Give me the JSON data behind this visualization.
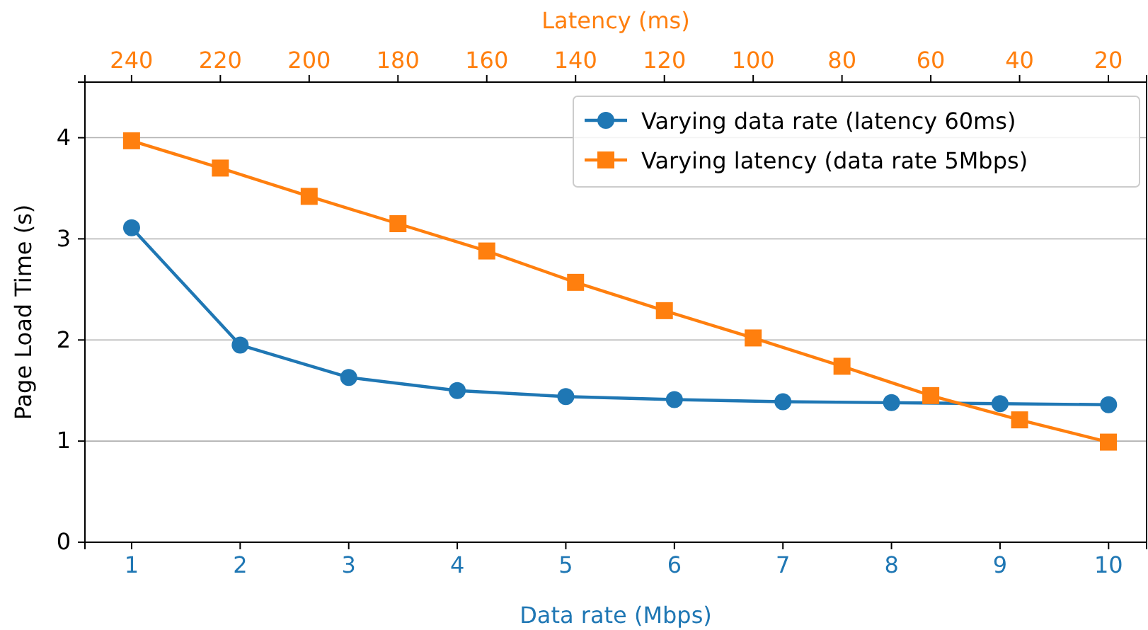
{
  "chart_data": {
    "type": "line",
    "xlabel": "Data rate (Mbps)",
    "x2label": "Latency (ms)",
    "ylabel": "Page Load Time (s)",
    "xlim": [
      0.57,
      10.35
    ],
    "xticks": [
      1,
      2,
      3,
      4,
      5,
      6,
      7,
      8,
      9,
      10
    ],
    "x2lim": [
      250.5,
      11.4
    ],
    "x2ticks": [
      240,
      220,
      200,
      180,
      160,
      140,
      120,
      100,
      80,
      60,
      40,
      20
    ],
    "ylim": [
      0,
      4.55
    ],
    "yticks": [
      0,
      1,
      2,
      3,
      4
    ],
    "grid": "y",
    "legend": "top right",
    "line_style": "solid",
    "series": [
      {
        "name": "Varying data rate (latency 60ms)",
        "color": "#1f77b4",
        "marker": "circle",
        "x": [
          1,
          2,
          3,
          4,
          5,
          6,
          7,
          8,
          9,
          10
        ],
        "values": [
          3.11,
          1.95,
          1.63,
          1.5,
          1.44,
          1.41,
          1.39,
          1.38,
          1.37,
          1.36
        ]
      },
      {
        "name": "Varying latency (data rate 5Mbps)",
        "color": "#ff7f0e",
        "marker": "square",
        "axis": "x2",
        "x": [
          240,
          220,
          200,
          180,
          160,
          140,
          120,
          100,
          80,
          60,
          40,
          20
        ],
        "values": [
          3.97,
          3.7,
          3.42,
          3.15,
          2.88,
          2.57,
          2.29,
          2.02,
          1.74,
          1.45,
          1.21,
          0.99
        ]
      }
    ]
  }
}
